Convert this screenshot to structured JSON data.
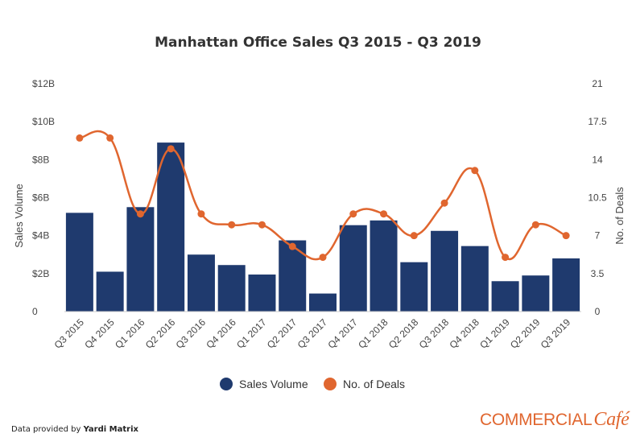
{
  "chart_data": {
    "type": "bar+line",
    "title": "Manhattan Office Sales Q3 2015 - Q3 2019",
    "categories": [
      "Q3 2015",
      "Q4 2015",
      "Q1 2016",
      "Q2 2016",
      "Q3 2016",
      "Q4 2016",
      "Q1 2017",
      "Q2 2017",
      "Q3 2017",
      "Q4 2017",
      "Q1 2018",
      "Q2 2018",
      "Q3 2018",
      "Q4 2018",
      "Q1 2019",
      "Q2 2019",
      "Q3 2019"
    ],
    "series": [
      {
        "name": "Sales Volume",
        "type": "bar",
        "axis": "left",
        "color": "#1f3a6e",
        "values": [
          5.2,
          2.1,
          5.5,
          8.9,
          3.0,
          2.45,
          1.95,
          3.75,
          0.95,
          4.55,
          4.8,
          2.6,
          4.25,
          3.45,
          1.6,
          1.9,
          2.8
        ]
      },
      {
        "name": "No. of Deals",
        "type": "line",
        "axis": "right",
        "color": "#e0662f",
        "values": [
          16,
          16,
          9,
          15,
          9,
          8,
          8,
          6,
          5,
          9,
          9,
          7,
          10,
          13,
          5,
          8,
          7
        ]
      }
    ],
    "left_axis": {
      "label": "Sales Volume",
      "min": 0,
      "max": 12,
      "ticks": [
        0,
        2,
        4,
        6,
        8,
        10,
        12
      ],
      "tick_labels": [
        "0",
        "$2B",
        "$4B",
        "$6B",
        "$8B",
        "$10B",
        "$12B"
      ]
    },
    "right_axis": {
      "label": "No. of Deals",
      "min": 0,
      "max": 21,
      "ticks": [
        0,
        3.5,
        7,
        10.5,
        14,
        17.5,
        21
      ],
      "tick_labels": [
        "0",
        "3.5",
        "7",
        "10.5",
        "14",
        "17.5",
        "21"
      ]
    },
    "grid": false,
    "legend_position": "bottom"
  },
  "footer": {
    "prefix": "Data provided by ",
    "source": "Yardi Matrix"
  },
  "logo": {
    "word": "COMMERCIAL",
    "cafe": "Café"
  }
}
